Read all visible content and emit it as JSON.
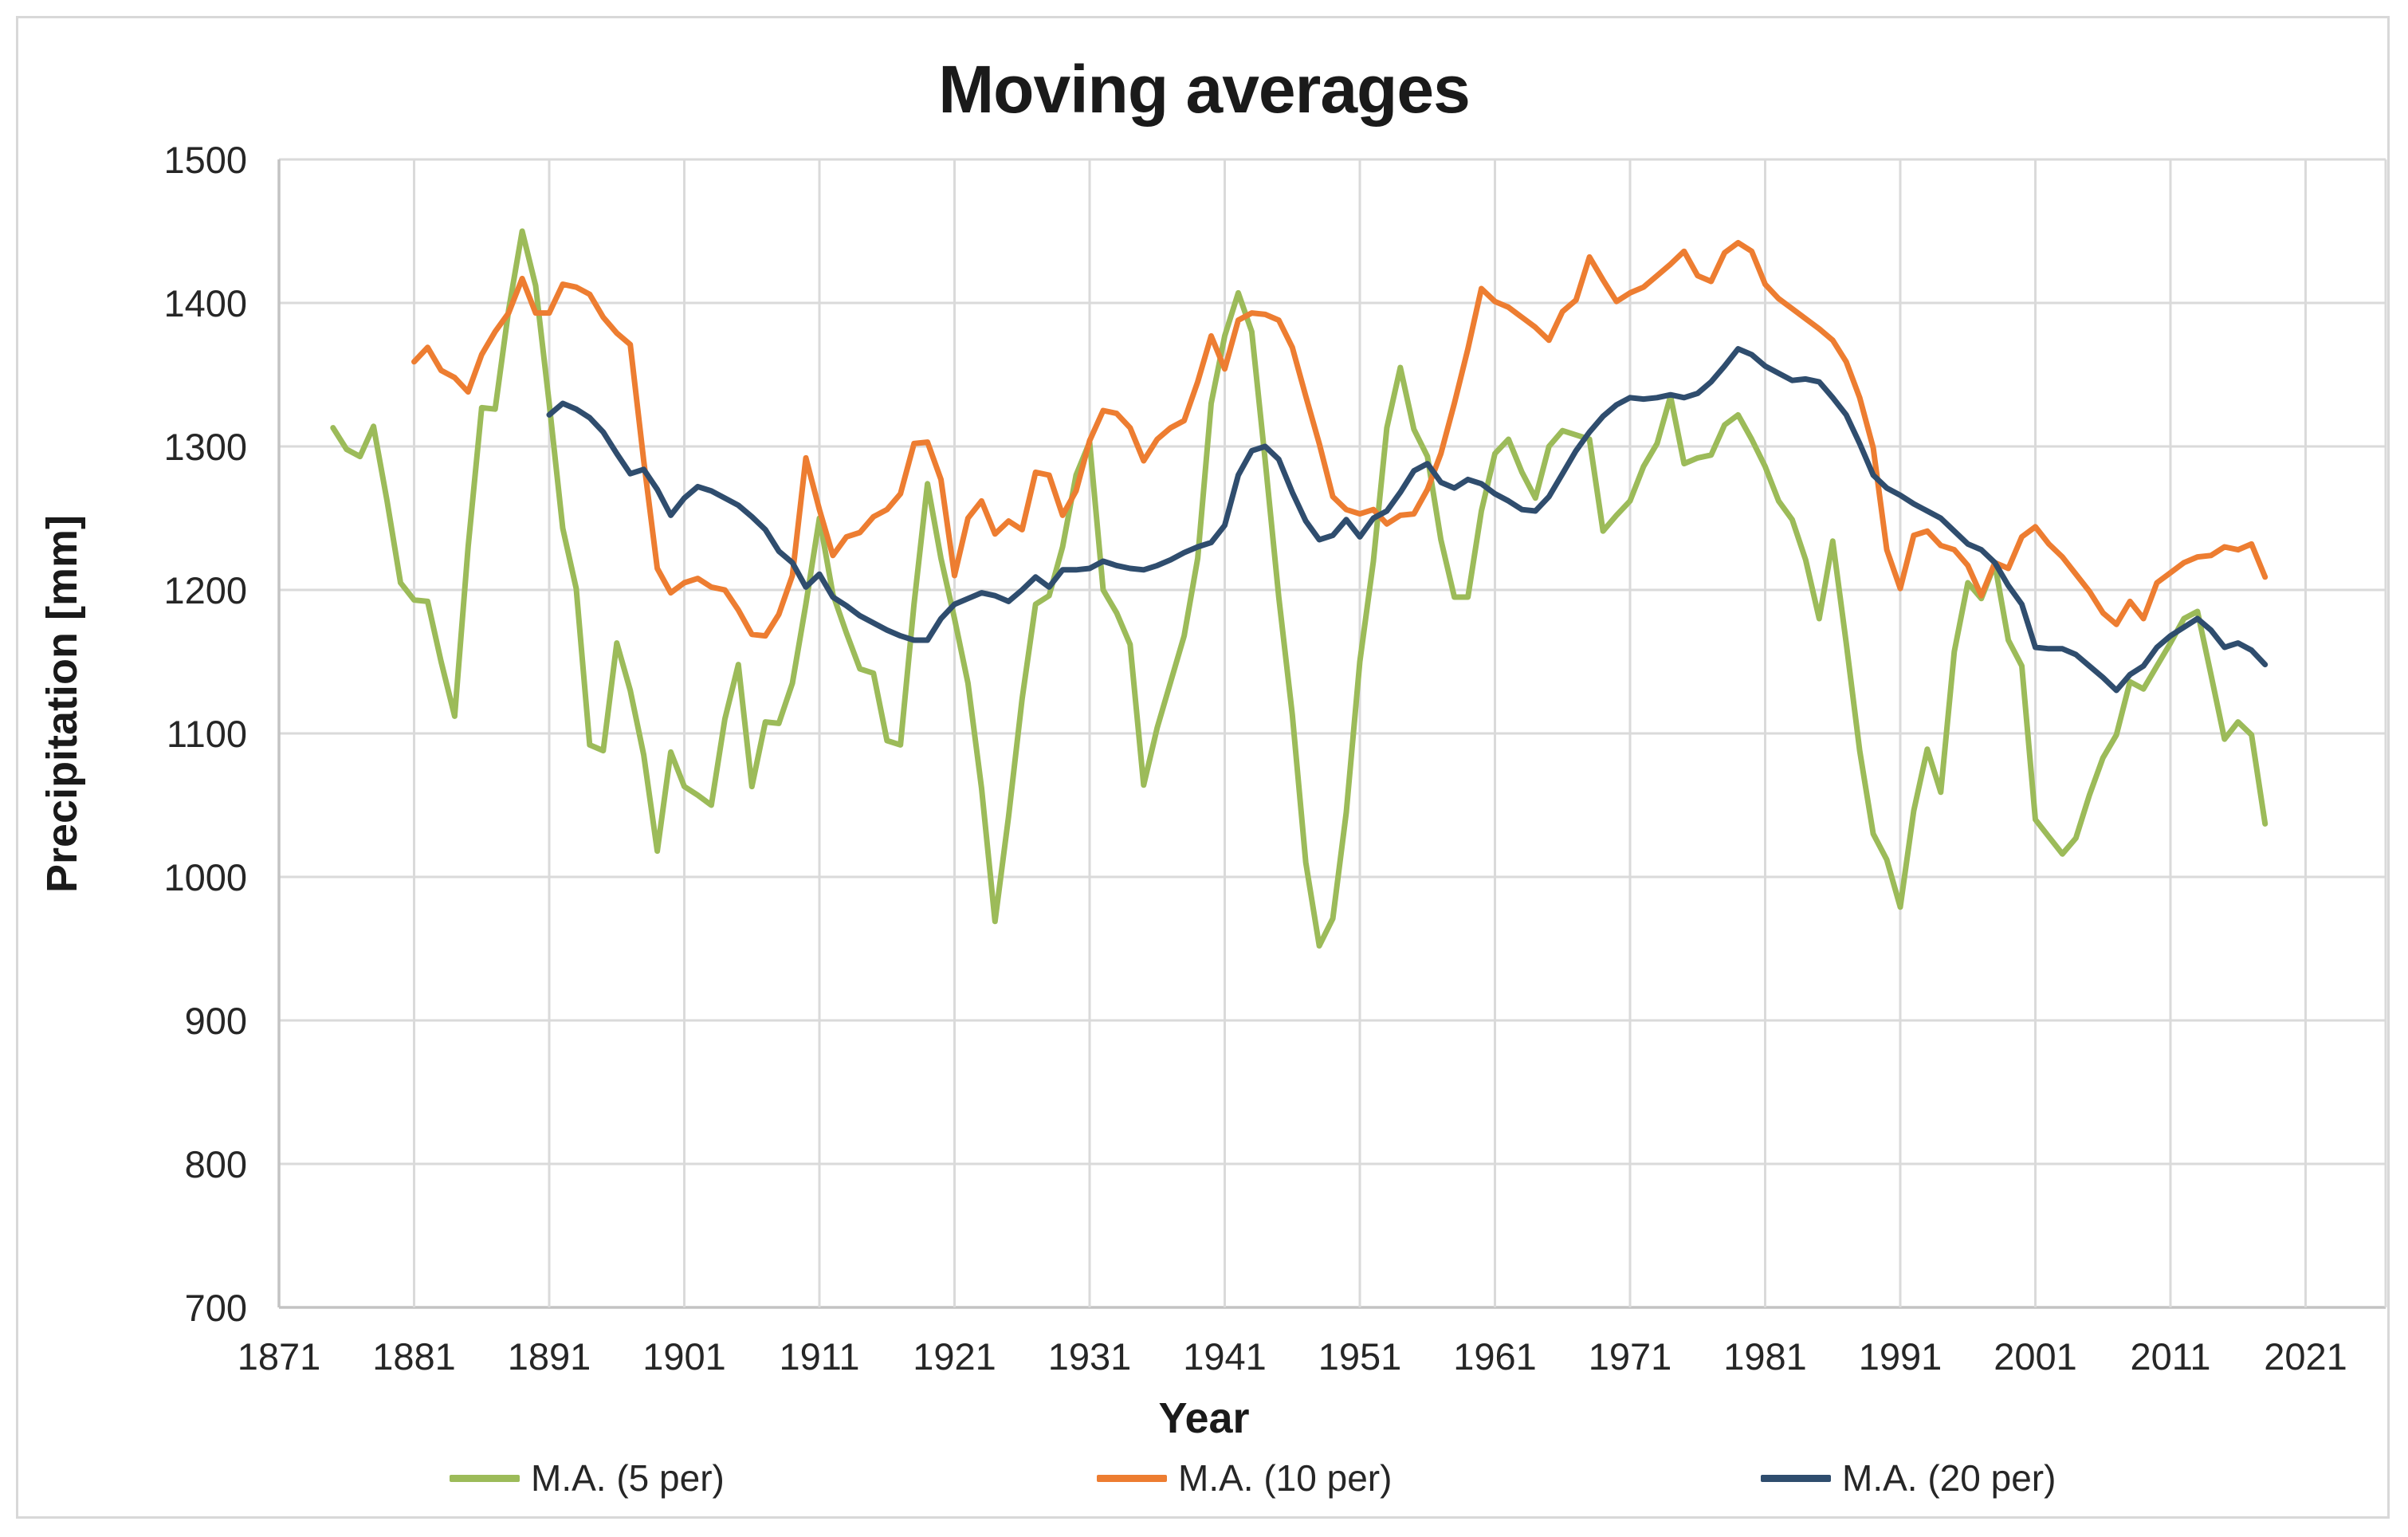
{
  "title": "Moving averages",
  "chart_data": {
    "type": "line",
    "title": "Moving averages",
    "xlabel": "Year",
    "ylabel": "Precipitation [mm]",
    "xlim": [
      1871,
      2021
    ],
    "ylim": [
      700,
      1500
    ],
    "grid": true,
    "legend_position": "bottom",
    "x_ticks": [
      1871,
      1881,
      1891,
      1901,
      1911,
      1921,
      1931,
      1941,
      1951,
      1961,
      1971,
      1981,
      1991,
      2001,
      2011,
      2021
    ],
    "y_ticks": [
      700,
      800,
      900,
      1000,
      1100,
      1200,
      1300,
      1400,
      1500
    ],
    "series": [
      {
        "name": "M.A. (5 per)",
        "color": "#9CBB59",
        "start_year": 1875,
        "values": [
          1313,
          1298,
          1293,
          1314,
          1262,
          1205,
          1193,
          1192,
          1150,
          1112,
          1230,
          1327,
          1326,
          1395,
          1450,
          1412,
          1330,
          1243,
          1201,
          1092,
          1088,
          1163,
          1130,
          1085,
          1018,
          1087,
          1063,
          1057,
          1050,
          1110,
          1148,
          1063,
          1108,
          1107,
          1135,
          1190,
          1250,
          1197,
          1170,
          1145,
          1142,
          1095,
          1092,
          1190,
          1274,
          1222,
          1180,
          1135,
          1062,
          969,
          1042,
          1124,
          1190,
          1196,
          1230,
          1280,
          1303,
          1200,
          1184,
          1162,
          1064,
          1104,
          1136,
          1168,
          1222,
          1330,
          1377,
          1407,
          1380,
          1290,
          1195,
          1113,
          1010,
          952,
          971,
          1045,
          1150,
          1220,
          1313,
          1355,
          1312,
          1293,
          1235,
          1195,
          1195,
          1255,
          1295,
          1305,
          1282,
          1264,
          1300,
          1311,
          1308,
          1305,
          1241,
          1252,
          1262,
          1286,
          1302,
          1335,
          1288,
          1292,
          1294,
          1315,
          1322,
          1305,
          1286,
          1262,
          1249,
          1221,
          1180,
          1234,
          1163,
          1088,
          1030,
          1012,
          979,
          1046,
          1089,
          1059,
          1157,
          1205,
          1194,
          1218,
          1165,
          1147,
          1040,
          1028,
          1016,
          1027,
          1057,
          1083,
          1099,
          1136,
          1131,
          1147,
          1163,
          1180,
          1185,
          1141,
          1096,
          1108,
          1099,
          1037
        ]
      },
      {
        "name": "M.A. (10 per)",
        "color": "#ED7D31",
        "start_year": 1881,
        "values": [
          1359,
          1369,
          1353,
          1348,
          1338,
          1364,
          1380,
          1393,
          1417,
          1393,
          1393,
          1413,
          1411,
          1406,
          1390,
          1379,
          1371,
          1290,
          1215,
          1198,
          1205,
          1208,
          1202,
          1200,
          1186,
          1169,
          1168,
          1183,
          1210,
          1292,
          1256,
          1224,
          1237,
          1240,
          1251,
          1256,
          1267,
          1302,
          1303,
          1277,
          1210,
          1250,
          1262,
          1239,
          1248,
          1242,
          1282,
          1280,
          1252,
          1269,
          1304,
          1325,
          1323,
          1313,
          1290,
          1305,
          1313,
          1318,
          1345,
          1377,
          1354,
          1388,
          1393,
          1392,
          1388,
          1369,
          1335,
          1302,
          1265,
          1256,
          1253,
          1256,
          1246,
          1252,
          1253,
          1270,
          1295,
          1330,
          1368,
          1410,
          1401,
          1397,
          1390,
          1383,
          1374,
          1394,
          1402,
          1432,
          1416,
          1401,
          1407,
          1411,
          1419,
          1427,
          1436,
          1419,
          1415,
          1435,
          1442,
          1436,
          1413,
          1403,
          1396,
          1389,
          1382,
          1374,
          1359,
          1334,
          1299,
          1228,
          1201,
          1238,
          1241,
          1231,
          1228,
          1217,
          1196,
          1219,
          1215,
          1237,
          1244,
          1232,
          1223,
          1211,
          1199,
          1184,
          1176,
          1192,
          1180,
          1205,
          1212,
          1219,
          1223,
          1224,
          1230,
          1228,
          1232,
          1209
        ]
      },
      {
        "name": "M.A. (20 per)",
        "color": "#2F4D6E",
        "start_year": 1891,
        "values": [
          1322,
          1330,
          1326,
          1320,
          1310,
          1295,
          1281,
          1284,
          1270,
          1252,
          1264,
          1272,
          1269,
          1264,
          1259,
          1251,
          1242,
          1227,
          1219,
          1202,
          1211,
          1195,
          1189,
          1182,
          1177,
          1172,
          1168,
          1165,
          1165,
          1180,
          1190,
          1194,
          1198,
          1196,
          1192,
          1200,
          1209,
          1202,
          1214,
          1214,
          1215,
          1220,
          1217,
          1215,
          1214,
          1217,
          1221,
          1226,
          1230,
          1233,
          1245,
          1280,
          1297,
          1300,
          1291,
          1268,
          1248,
          1235,
          1238,
          1249,
          1237,
          1250,
          1255,
          1268,
          1283,
          1288,
          1275,
          1271,
          1277,
          1274,
          1267,
          1262,
          1256,
          1255,
          1265,
          1281,
          1297,
          1310,
          1321,
          1329,
          1334,
          1333,
          1334,
          1336,
          1334,
          1337,
          1345,
          1356,
          1368,
          1364,
          1356,
          1351,
          1346,
          1347,
          1345,
          1334,
          1322,
          1302,
          1280,
          1271,
          1266,
          1260,
          1255,
          1250,
          1241,
          1232,
          1228,
          1219,
          1203,
          1190,
          1160,
          1159,
          1159,
          1155,
          1147,
          1139,
          1130,
          1141,
          1147,
          1160,
          1168,
          1174,
          1180,
          1172,
          1160,
          1163,
          1158,
          1148
        ]
      }
    ]
  }
}
